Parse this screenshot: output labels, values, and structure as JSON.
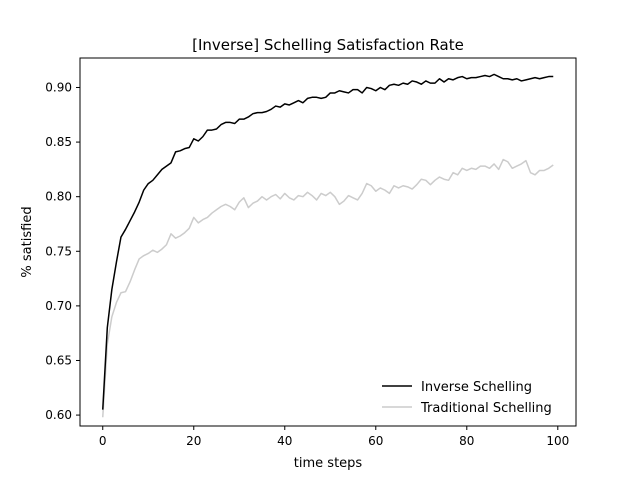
{
  "chart_data": {
    "type": "line",
    "title": "[Inverse] Schelling Satisfaction Rate",
    "xlabel": "time steps",
    "ylabel": "% satisfied",
    "xlim": [
      -5,
      104
    ],
    "ylim": [
      0.59,
      0.927
    ],
    "xticks": [
      0,
      20,
      40,
      60,
      80,
      100
    ],
    "yticks": [
      0.6,
      0.65,
      0.7,
      0.75,
      0.8,
      0.85,
      0.9
    ],
    "grid": false,
    "legend_position": "lower-right",
    "series": [
      {
        "name": "Inverse Schelling",
        "color": "#000000",
        "x": [
          0,
          1,
          2,
          3,
          4,
          5,
          6,
          7,
          8,
          9,
          10,
          11,
          12,
          13,
          14,
          15,
          16,
          17,
          18,
          19,
          20,
          21,
          22,
          23,
          24,
          25,
          26,
          27,
          28,
          29,
          30,
          31,
          32,
          33,
          34,
          35,
          36,
          37,
          38,
          39,
          40,
          41,
          42,
          43,
          44,
          45,
          46,
          47,
          48,
          49,
          50,
          51,
          52,
          53,
          54,
          55,
          56,
          57,
          58,
          59,
          60,
          61,
          62,
          63,
          64,
          65,
          66,
          67,
          68,
          69,
          70,
          71,
          72,
          73,
          74,
          75,
          76,
          77,
          78,
          79,
          80,
          81,
          82,
          83,
          84,
          85,
          86,
          87,
          88,
          89,
          90,
          91,
          92,
          93,
          94,
          95,
          96,
          97,
          98,
          99
        ],
        "y": [
          0.605,
          0.68,
          0.715,
          0.74,
          0.763,
          0.77,
          0.778,
          0.786,
          0.795,
          0.806,
          0.812,
          0.815,
          0.82,
          0.825,
          0.828,
          0.831,
          0.841,
          0.842,
          0.844,
          0.845,
          0.853,
          0.851,
          0.855,
          0.861,
          0.861,
          0.862,
          0.866,
          0.868,
          0.868,
          0.867,
          0.871,
          0.871,
          0.873,
          0.876,
          0.877,
          0.877,
          0.878,
          0.88,
          0.883,
          0.882,
          0.885,
          0.884,
          0.886,
          0.888,
          0.886,
          0.89,
          0.891,
          0.891,
          0.89,
          0.891,
          0.895,
          0.895,
          0.897,
          0.896,
          0.895,
          0.898,
          0.898,
          0.895,
          0.9,
          0.899,
          0.897,
          0.9,
          0.898,
          0.902,
          0.903,
          0.902,
          0.904,
          0.903,
          0.906,
          0.905,
          0.903,
          0.906,
          0.904,
          0.904,
          0.908,
          0.905,
          0.908,
          0.907,
          0.909,
          0.91,
          0.908,
          0.909,
          0.909,
          0.91,
          0.911,
          0.91,
          0.912,
          0.91,
          0.908,
          0.908,
          0.907,
          0.908,
          0.906,
          0.907,
          0.908,
          0.909,
          0.908,
          0.909,
          0.91,
          0.91
        ]
      },
      {
        "name": "Traditional Schelling",
        "color": "#cccccc",
        "x": [
          0,
          1,
          2,
          3,
          4,
          5,
          6,
          7,
          8,
          9,
          10,
          11,
          12,
          13,
          14,
          15,
          16,
          17,
          18,
          19,
          20,
          21,
          22,
          23,
          24,
          25,
          26,
          27,
          28,
          29,
          30,
          31,
          32,
          33,
          34,
          35,
          36,
          37,
          38,
          39,
          40,
          41,
          42,
          43,
          44,
          45,
          46,
          47,
          48,
          49,
          50,
          51,
          52,
          53,
          54,
          55,
          56,
          57,
          58,
          59,
          60,
          61,
          62,
          63,
          64,
          65,
          66,
          67,
          68,
          69,
          70,
          71,
          72,
          73,
          74,
          75,
          76,
          77,
          78,
          79,
          80,
          81,
          82,
          83,
          84,
          85,
          86,
          87,
          88,
          89,
          90,
          91,
          92,
          93,
          94,
          95,
          96,
          97,
          98,
          99
        ],
        "y": [
          0.598,
          0.665,
          0.69,
          0.703,
          0.712,
          0.713,
          0.722,
          0.733,
          0.743,
          0.746,
          0.748,
          0.751,
          0.749,
          0.752,
          0.756,
          0.766,
          0.762,
          0.764,
          0.767,
          0.771,
          0.781,
          0.776,
          0.779,
          0.781,
          0.785,
          0.788,
          0.791,
          0.793,
          0.791,
          0.788,
          0.795,
          0.799,
          0.79,
          0.794,
          0.796,
          0.8,
          0.797,
          0.8,
          0.802,
          0.798,
          0.803,
          0.799,
          0.797,
          0.801,
          0.8,
          0.804,
          0.801,
          0.797,
          0.803,
          0.801,
          0.804,
          0.8,
          0.793,
          0.796,
          0.801,
          0.799,
          0.797,
          0.803,
          0.812,
          0.81,
          0.805,
          0.808,
          0.806,
          0.803,
          0.81,
          0.808,
          0.81,
          0.809,
          0.807,
          0.811,
          0.816,
          0.815,
          0.811,
          0.815,
          0.818,
          0.816,
          0.815,
          0.822,
          0.82,
          0.826,
          0.824,
          0.826,
          0.825,
          0.828,
          0.828,
          0.826,
          0.83,
          0.825,
          0.834,
          0.832,
          0.826,
          0.828,
          0.83,
          0.833,
          0.822,
          0.82,
          0.824,
          0.824,
          0.826,
          0.829
        ]
      }
    ]
  }
}
